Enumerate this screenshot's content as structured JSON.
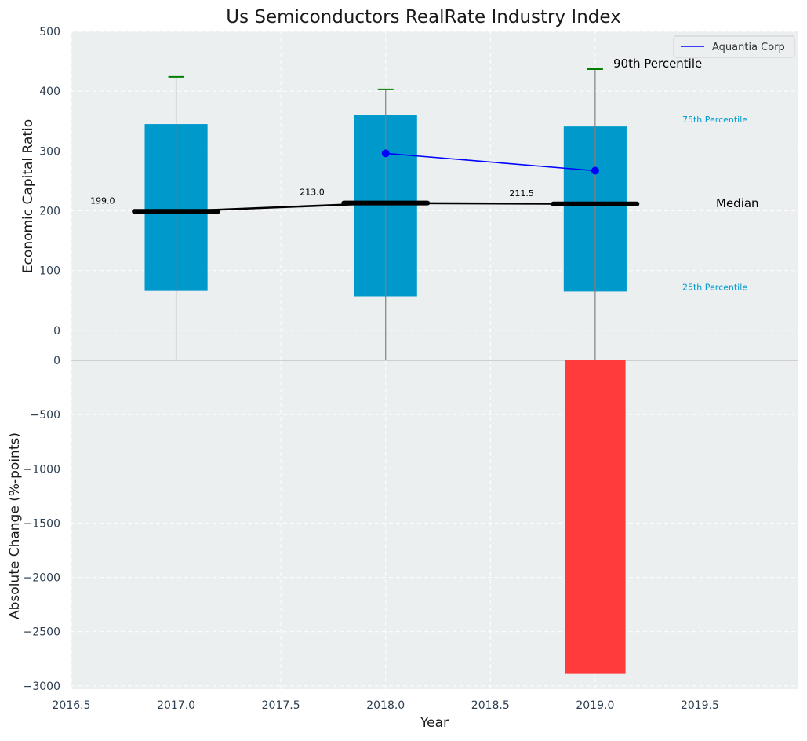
{
  "chart_data": [
    {
      "type": "bar",
      "panel": "top",
      "title": "Us Semiconductors RealRate Industry Index",
      "ylabel": "Economic Capital Ratio",
      "ylim": [
        -50,
        500
      ],
      "yticks": [
        0,
        100,
        200,
        300,
        400,
        500
      ],
      "grid": true,
      "legend": {
        "placement": "top-right",
        "entries": [
          "Aquantia Corp"
        ]
      },
      "years": [
        2017,
        2018,
        2019
      ],
      "percentile_25": [
        66,
        57,
        65
      ],
      "percentile_75": [
        345,
        360,
        341
      ],
      "median": [
        199.0,
        213.0,
        211.5
      ],
      "median_labels": [
        "199.0",
        "213.0",
        "211.5"
      ],
      "percentile_90": [
        424,
        403,
        437
      ],
      "whisker_low": [
        -50,
        -50,
        -50
      ],
      "series": [
        {
          "name": "Aquantia Corp",
          "x": [
            2018,
            2019
          ],
          "values": [
            296,
            267
          ]
        }
      ],
      "annotations": {
        "p90": "90th Percentile",
        "p75": "75th Percentile",
        "median": "Median",
        "p25": "25th Percentile"
      },
      "colors": {
        "box": "#0099CC",
        "median": "#000000",
        "whisker_cap": "#008000",
        "whisker": "#808080",
        "company": "#0000FF",
        "percentile_text": "#0099CC",
        "plot_bg": "#EBEFF0"
      }
    },
    {
      "type": "bar",
      "panel": "bottom",
      "xlabel": "Year",
      "ylabel": "Absolute Change (%-points)",
      "xlim": [
        2016.5,
        2019.97
      ],
      "xticks": [
        2016.5,
        2017.0,
        2017.5,
        2018.0,
        2018.5,
        2019.0,
        2019.5
      ],
      "xtick_labels": [
        "2016.5",
        "2017.0",
        "2017.5",
        "2018.0",
        "2018.5",
        "2019.0",
        "2019.5"
      ],
      "ylim": [
        -3030,
        0
      ],
      "yticks": [
        -3000,
        -2500,
        -2000,
        -1500,
        -1000,
        -500,
        0
      ],
      "ytick_labels": [
        "−3000",
        "−2500",
        "−2000",
        "−1500",
        "−1000",
        "−500",
        "0"
      ],
      "grid": true,
      "x": [
        2019
      ],
      "values": [
        -2890
      ],
      "colors": {
        "bar": "#FF3B3B"
      }
    }
  ]
}
